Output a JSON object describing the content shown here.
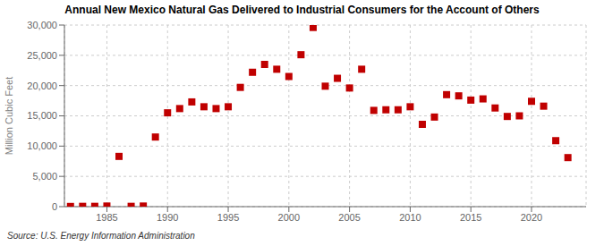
{
  "chart_data": {
    "type": "scatter",
    "title": "Annual New Mexico Natural Gas Delivered to Industrial Consumers for the Account of Others",
    "ylabel": "Million Cubic Feet",
    "annotations": [
      "Source: U.S. Energy Information Administration"
    ],
    "x": [
      1982,
      1983,
      1984,
      1985,
      1986,
      1987,
      1988,
      1989,
      1990,
      1991,
      1992,
      1993,
      1994,
      1995,
      1996,
      1997,
      1998,
      1999,
      2000,
      2001,
      2002,
      2003,
      2004,
      2005,
      2006,
      2007,
      2008,
      2009,
      2010,
      2011,
      2012,
      2013,
      2014,
      2015,
      2016,
      2017,
      2018,
      2019,
      2020,
      2021,
      2022,
      2023
    ],
    "values": [
      30,
      50,
      50,
      100,
      8300,
      50,
      100,
      11500,
      15500,
      16200,
      17300,
      16500,
      16200,
      16500,
      19700,
      22200,
      23500,
      22700,
      21500,
      25100,
      29600,
      19900,
      21200,
      19600,
      22700,
      15900,
      16000,
      16000,
      16500,
      13600,
      14800,
      18500,
      18300,
      17600,
      17800,
      16300,
      14900,
      15000,
      17400,
      16600,
      10900,
      8100
    ],
    "color": "#c00000",
    "marker": "square",
    "grid": true,
    "xlim": [
      1981.5,
      2024.5
    ],
    "xticks": [
      1985,
      1990,
      1995,
      2000,
      2005,
      2010,
      2015,
      2020
    ],
    "ylim": [
      0,
      30000
    ],
    "yticks": [
      0,
      {
        "value": 5000,
        "label": "5,000"
      },
      {
        "value": 10000,
        "label": "10,000"
      },
      {
        "value": 15000,
        "label": "15,000"
      },
      {
        "value": 20000,
        "label": "20,000"
      },
      {
        "value": 25000,
        "label": "25,000"
      },
      {
        "value": 30000,
        "label": "30,000"
      }
    ]
  }
}
